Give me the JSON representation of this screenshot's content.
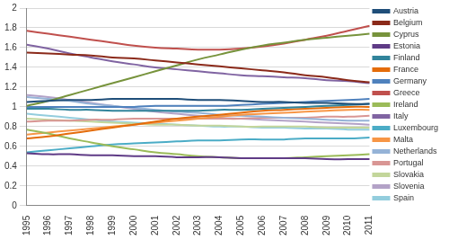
{
  "chart_data": {
    "type": "line",
    "categories": [
      "1995",
      "1996",
      "1997",
      "1998",
      "1999",
      "2000",
      "2001",
      "2002",
      "2003",
      "2004",
      "2005",
      "2006",
      "2007",
      "2008",
      "2009",
      "2010",
      "2011"
    ],
    "ylim": [
      0,
      2
    ],
    "yticks": [
      0,
      0.2,
      0.4,
      0.6,
      0.8,
      1,
      1.2,
      1.4,
      1.6,
      1.8,
      2
    ],
    "grid": true,
    "legend": "right",
    "series": [
      {
        "name": "Austria",
        "color": "#1f4e79",
        "values": [
          1.05,
          1.06,
          1.07,
          1.07,
          1.08,
          1.08,
          1.08,
          1.08,
          1.07,
          1.07,
          1.06,
          1.05,
          1.05,
          1.04,
          1.04,
          1.03,
          1.03
        ]
      },
      {
        "name": "Belgium",
        "color": "#8b2a1a",
        "values": [
          1.55,
          1.54,
          1.53,
          1.52,
          1.5,
          1.49,
          1.47,
          1.45,
          1.43,
          1.41,
          1.39,
          1.37,
          1.35,
          1.32,
          1.3,
          1.27,
          1.25
        ]
      },
      {
        "name": "Cyprus",
        "color": "#77933c",
        "values": [
          1.01,
          1.06,
          1.12,
          1.18,
          1.24,
          1.3,
          1.36,
          1.42,
          1.48,
          1.53,
          1.58,
          1.62,
          1.65,
          1.68,
          1.7,
          1.72,
          1.74
        ]
      },
      {
        "name": "Estonia",
        "color": "#5f3b86",
        "values": [
          0.53,
          0.52,
          0.52,
          0.51,
          0.51,
          0.5,
          0.5,
          0.49,
          0.49,
          0.49,
          0.48,
          0.48,
          0.48,
          0.48,
          0.47,
          0.47,
          0.47
        ]
      },
      {
        "name": "Finland",
        "color": "#31849b",
        "values": [
          0.98,
          0.98,
          0.97,
          0.97,
          0.96,
          0.96,
          0.96,
          0.96,
          0.96,
          0.97,
          0.97,
          0.98,
          0.99,
          1.0,
          1.01,
          1.02,
          1.03
        ]
      },
      {
        "name": "France",
        "color": "#e46c0a",
        "values": [
          0.68,
          0.7,
          0.73,
          0.76,
          0.79,
          0.82,
          0.85,
          0.88,
          0.9,
          0.92,
          0.94,
          0.96,
          0.97,
          0.98,
          0.99,
          1.0,
          1.0
        ]
      },
      {
        "name": "Germany",
        "color": "#4f81bd",
        "values": [
          1.0,
          1.0,
          1.0,
          1.0,
          1.0,
          1.0,
          1.01,
          1.01,
          1.01,
          1.01,
          1.02,
          1.03,
          1.04,
          1.05,
          1.06,
          1.07,
          1.08
        ]
      },
      {
        "name": "Greece",
        "color": "#c0504d",
        "values": [
          1.77,
          1.74,
          1.71,
          1.68,
          1.65,
          1.62,
          1.6,
          1.59,
          1.58,
          1.58,
          1.59,
          1.61,
          1.64,
          1.68,
          1.72,
          1.77,
          1.82
        ]
      },
      {
        "name": "Ireland",
        "color": "#9bbb59",
        "values": [
          0.77,
          0.73,
          0.68,
          0.64,
          0.6,
          0.57,
          0.54,
          0.52,
          0.5,
          0.49,
          0.48,
          0.48,
          0.48,
          0.49,
          0.5,
          0.51,
          0.52
        ]
      },
      {
        "name": "Italy",
        "color": "#8064a2",
        "values": [
          1.63,
          1.59,
          1.54,
          1.5,
          1.46,
          1.43,
          1.4,
          1.38,
          1.36,
          1.34,
          1.32,
          1.31,
          1.3,
          1.29,
          1.27,
          1.26,
          1.24
        ]
      },
      {
        "name": "Luxembourg",
        "color": "#4bacc6",
        "values": [
          0.54,
          0.56,
          0.58,
          0.6,
          0.62,
          0.63,
          0.64,
          0.65,
          0.66,
          0.66,
          0.67,
          0.67,
          0.67,
          0.68,
          0.68,
          0.68,
          0.69
        ]
      },
      {
        "name": "Malta",
        "color": "#f79646",
        "values": [
          0.72,
          0.74,
          0.76,
          0.78,
          0.8,
          0.82,
          0.84,
          0.86,
          0.88,
          0.9,
          0.92,
          0.93,
          0.94,
          0.95,
          0.96,
          0.97,
          0.97
        ]
      },
      {
        "name": "Netherlands",
        "color": "#95b3d7",
        "values": [
          1.1,
          1.08,
          1.06,
          1.03,
          1.01,
          0.99,
          0.97,
          0.95,
          0.94,
          0.92,
          0.91,
          0.9,
          0.89,
          0.88,
          0.87,
          0.86,
          0.86
        ]
      },
      {
        "name": "Portugal",
        "color": "#d99694",
        "values": [
          0.85,
          0.86,
          0.86,
          0.87,
          0.87,
          0.88,
          0.88,
          0.88,
          0.88,
          0.88,
          0.88,
          0.89,
          0.89,
          0.89,
          0.9,
          0.9,
          0.91
        ]
      },
      {
        "name": "Slovakia",
        "color": "#c3d69b",
        "values": [
          0.88,
          0.87,
          0.86,
          0.85,
          0.84,
          0.83,
          0.82,
          0.82,
          0.81,
          0.81,
          0.8,
          0.8,
          0.8,
          0.8,
          0.79,
          0.79,
          0.79
        ]
      },
      {
        "name": "Slovenia",
        "color": "#b3a2c7",
        "values": [
          1.12,
          1.1,
          1.07,
          1.04,
          1.01,
          0.98,
          0.95,
          0.93,
          0.91,
          0.89,
          0.88,
          0.87,
          0.86,
          0.85,
          0.84,
          0.83,
          0.82
        ]
      },
      {
        "name": "Spain",
        "color": "#93cddd",
        "values": [
          0.93,
          0.91,
          0.89,
          0.87,
          0.85,
          0.84,
          0.83,
          0.82,
          0.81,
          0.8,
          0.8,
          0.79,
          0.79,
          0.78,
          0.78,
          0.77,
          0.77
        ]
      }
    ]
  }
}
